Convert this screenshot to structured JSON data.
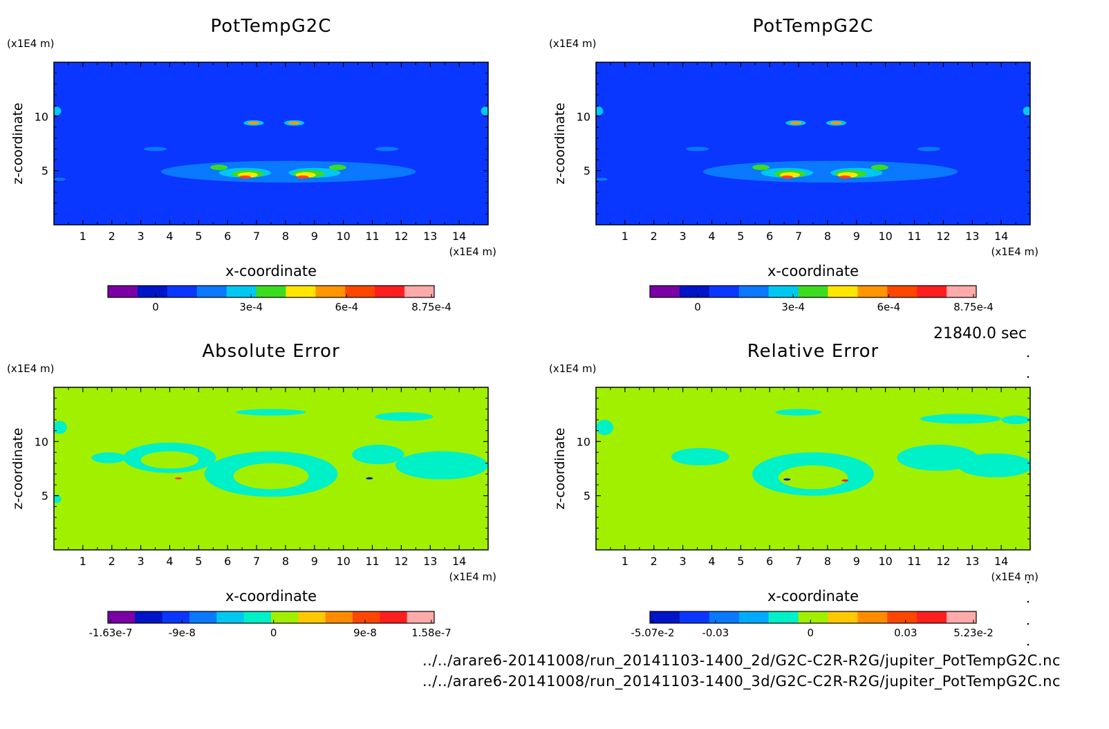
{
  "time_label": "21840.0 sec",
  "footer": {
    "line1": "../../arare6-20141008/run_20141103-1400_2d/G2C-C2R-R2G/jupiter_PotTempG2C.nc",
    "line2": "../../arare6-20141008/run_20141103-1400_3d/G2C-C2R-R2G/jupiter_PotTempG2C.nc"
  },
  "chart_data": [
    {
      "type": "heatmap",
      "title": "PotTempG2C",
      "xlabel": "x-coordinate",
      "ylabel": "z-coordinate",
      "x_unit": "(x1E4 m)",
      "y_unit": "(x1E4 m)",
      "xlim": [
        0,
        15
      ],
      "ylim": [
        0,
        15
      ],
      "x_ticks": [
        1,
        2,
        3,
        4,
        5,
        6,
        7,
        8,
        9,
        10,
        11,
        12,
        13,
        14
      ],
      "y_ticks": [
        5,
        10
      ],
      "background_color": "#0a37ff",
      "colorbar": {
        "colors": [
          "#7b00a5",
          "#0014c8",
          "#0a37ff",
          "#0a78ff",
          "#00c8f0",
          "#3cdc1e",
          "#ffe600",
          "#ff9600",
          "#ff4600",
          "#ff1e1e",
          "#ffaaaa"
        ],
        "ticks": [
          "0",
          "3e-4",
          "6e-4",
          "8.75e-4"
        ],
        "tick_values": [
          0,
          0.0003,
          0.0006,
          0.000875
        ],
        "range": [
          -0.00015,
          0.000875
        ]
      },
      "blobs": [
        {
          "x": 8.1,
          "z": 4.9,
          "rx": 4.4,
          "rz": 1.0,
          "color": "#0a78ff"
        },
        {
          "x": 6.6,
          "z": 4.8,
          "rx": 0.9,
          "rz": 0.45,
          "color": "#00c8f0"
        },
        {
          "x": 9.0,
          "z": 4.8,
          "rx": 0.9,
          "rz": 0.45,
          "color": "#00c8f0"
        },
        {
          "x": 6.7,
          "z": 4.7,
          "rx": 0.55,
          "rz": 0.35,
          "color": "#3cdc1e"
        },
        {
          "x": 8.8,
          "z": 4.7,
          "rx": 0.55,
          "rz": 0.35,
          "color": "#3cdc1e"
        },
        {
          "x": 6.7,
          "z": 4.6,
          "rx": 0.35,
          "rz": 0.25,
          "color": "#ffe600"
        },
        {
          "x": 8.7,
          "z": 4.6,
          "rx": 0.35,
          "rz": 0.25,
          "color": "#ffe600"
        },
        {
          "x": 6.6,
          "z": 4.4,
          "rx": 0.2,
          "rz": 0.15,
          "color": "#ff4600"
        },
        {
          "x": 8.6,
          "z": 4.4,
          "rx": 0.2,
          "rz": 0.15,
          "color": "#ff4600"
        },
        {
          "x": 5.7,
          "z": 5.3,
          "rx": 0.3,
          "rz": 0.25,
          "color": "#3cdc1e"
        },
        {
          "x": 9.8,
          "z": 5.3,
          "rx": 0.3,
          "rz": 0.25,
          "color": "#3cdc1e"
        },
        {
          "x": 6.9,
          "z": 9.4,
          "rx": 0.35,
          "rz": 0.25,
          "color": "#00c8f0"
        },
        {
          "x": 8.3,
          "z": 9.4,
          "rx": 0.35,
          "rz": 0.25,
          "color": "#00c8f0"
        },
        {
          "x": 6.9,
          "z": 9.4,
          "rx": 0.2,
          "rz": 0.14,
          "color": "#ff9600"
        },
        {
          "x": 8.3,
          "z": 9.4,
          "rx": 0.2,
          "rz": 0.14,
          "color": "#ff9600"
        },
        {
          "x": 0.1,
          "z": 10.5,
          "rx": 0.15,
          "rz": 0.4,
          "color": "#00c8f0"
        },
        {
          "x": 14.9,
          "z": 10.5,
          "rx": 0.15,
          "rz": 0.4,
          "color": "#00c8f0"
        },
        {
          "x": 3.5,
          "z": 7.0,
          "rx": 0.4,
          "rz": 0.2,
          "color": "#0a78ff"
        },
        {
          "x": 11.5,
          "z": 7.0,
          "rx": 0.4,
          "rz": 0.2,
          "color": "#0a78ff"
        },
        {
          "x": 0.2,
          "z": 4.2,
          "rx": 0.2,
          "rz": 0.15,
          "color": "#0a78ff"
        }
      ]
    },
    {
      "type": "heatmap",
      "title": "PotTempG2C",
      "xlabel": "x-coordinate",
      "ylabel": "z-coordinate",
      "x_unit": "(x1E4 m)",
      "y_unit": "(x1E4 m)",
      "xlim": [
        0,
        15
      ],
      "ylim": [
        0,
        15
      ],
      "x_ticks": [
        1,
        2,
        3,
        4,
        5,
        6,
        7,
        8,
        9,
        10,
        11,
        12,
        13,
        14
      ],
      "y_ticks": [
        5,
        10
      ],
      "background_color": "#0a37ff",
      "colorbar": {
        "colors": [
          "#7b00a5",
          "#0014c8",
          "#0a37ff",
          "#0a78ff",
          "#00c8f0",
          "#3cdc1e",
          "#ffe600",
          "#ff9600",
          "#ff4600",
          "#ff1e1e",
          "#ffaaaa"
        ],
        "ticks": [
          "0",
          "3e-4",
          "6e-4",
          "8.75e-4"
        ],
        "tick_values": [
          0,
          0.0003,
          0.0006,
          0.000875
        ],
        "range": [
          -0.00015,
          0.000875
        ]
      },
      "blobs": [
        {
          "x": 8.1,
          "z": 4.9,
          "rx": 4.4,
          "rz": 1.0,
          "color": "#0a78ff"
        },
        {
          "x": 6.6,
          "z": 4.8,
          "rx": 0.9,
          "rz": 0.45,
          "color": "#00c8f0"
        },
        {
          "x": 9.0,
          "z": 4.8,
          "rx": 0.9,
          "rz": 0.45,
          "color": "#00c8f0"
        },
        {
          "x": 6.7,
          "z": 4.7,
          "rx": 0.55,
          "rz": 0.35,
          "color": "#3cdc1e"
        },
        {
          "x": 8.8,
          "z": 4.7,
          "rx": 0.55,
          "rz": 0.35,
          "color": "#3cdc1e"
        },
        {
          "x": 6.7,
          "z": 4.6,
          "rx": 0.35,
          "rz": 0.25,
          "color": "#ffe600"
        },
        {
          "x": 8.7,
          "z": 4.6,
          "rx": 0.35,
          "rz": 0.25,
          "color": "#ffe600"
        },
        {
          "x": 6.6,
          "z": 4.4,
          "rx": 0.2,
          "rz": 0.15,
          "color": "#ff4600"
        },
        {
          "x": 8.6,
          "z": 4.4,
          "rx": 0.2,
          "rz": 0.15,
          "color": "#ff4600"
        },
        {
          "x": 5.7,
          "z": 5.3,
          "rx": 0.3,
          "rz": 0.25,
          "color": "#3cdc1e"
        },
        {
          "x": 9.8,
          "z": 5.3,
          "rx": 0.3,
          "rz": 0.25,
          "color": "#3cdc1e"
        },
        {
          "x": 6.9,
          "z": 9.4,
          "rx": 0.35,
          "rz": 0.25,
          "color": "#00c8f0"
        },
        {
          "x": 8.3,
          "z": 9.4,
          "rx": 0.35,
          "rz": 0.25,
          "color": "#00c8f0"
        },
        {
          "x": 6.9,
          "z": 9.4,
          "rx": 0.2,
          "rz": 0.14,
          "color": "#ff9600"
        },
        {
          "x": 8.3,
          "z": 9.4,
          "rx": 0.2,
          "rz": 0.14,
          "color": "#ff9600"
        },
        {
          "x": 0.1,
          "z": 10.5,
          "rx": 0.15,
          "rz": 0.4,
          "color": "#00c8f0"
        },
        {
          "x": 14.9,
          "z": 10.5,
          "rx": 0.15,
          "rz": 0.4,
          "color": "#00c8f0"
        },
        {
          "x": 3.5,
          "z": 7.0,
          "rx": 0.4,
          "rz": 0.2,
          "color": "#0a78ff"
        },
        {
          "x": 11.5,
          "z": 7.0,
          "rx": 0.4,
          "rz": 0.2,
          "color": "#0a78ff"
        },
        {
          "x": 0.2,
          "z": 4.2,
          "rx": 0.2,
          "rz": 0.15,
          "color": "#0a78ff"
        }
      ]
    },
    {
      "type": "heatmap",
      "title": "Absolute Error",
      "xlabel": "x-coordinate",
      "ylabel": "z-coordinate",
      "x_unit": "(x1E4 m)",
      "y_unit": "(x1E4 m)",
      "xlim": [
        0,
        15
      ],
      "ylim": [
        0,
        15
      ],
      "x_ticks": [
        1,
        2,
        3,
        4,
        5,
        6,
        7,
        8,
        9,
        10,
        11,
        12,
        13,
        14
      ],
      "y_ticks": [
        5,
        10
      ],
      "background_color": "#a0f000",
      "colorbar": {
        "colors": [
          "#7b00a5",
          "#0014c8",
          "#0a37ff",
          "#0a78ff",
          "#00c8f0",
          "#00f0c8",
          "#a0f000",
          "#ffc800",
          "#ff8c00",
          "#ff4600",
          "#ff1e1e",
          "#ffaaaa"
        ],
        "ticks": [
          "-1.63e-7",
          "-9e-8",
          "0",
          "9e-8",
          "1.58e-7"
        ],
        "tick_values": [
          -1.63e-07,
          -9e-08,
          0,
          9e-08,
          1.58e-07
        ],
        "range": [
          -1.63e-07,
          1.58e-07
        ]
      },
      "blobs": [
        {
          "x": 7.5,
          "z": 7.0,
          "rx": 2.3,
          "rz": 2.1,
          "color": "#00f0c8"
        },
        {
          "x": 7.5,
          "z": 6.8,
          "rx": 1.3,
          "rz": 1.2,
          "color": "#a0f000"
        },
        {
          "x": 4.0,
          "z": 8.5,
          "rx": 1.6,
          "rz": 1.4,
          "color": "#00f0c8"
        },
        {
          "x": 4.0,
          "z": 8.3,
          "rx": 1.0,
          "rz": 0.8,
          "color": "#a0f000"
        },
        {
          "x": 11.2,
          "z": 8.8,
          "rx": 0.9,
          "rz": 0.9,
          "color": "#00f0c8"
        },
        {
          "x": 13.4,
          "z": 7.8,
          "rx": 1.6,
          "rz": 1.3,
          "color": "#00f0c8"
        },
        {
          "x": 12.1,
          "z": 12.3,
          "rx": 1.0,
          "rz": 0.4,
          "color": "#00f0c8"
        },
        {
          "x": 7.5,
          "z": 12.7,
          "rx": 1.2,
          "rz": 0.3,
          "color": "#00f0c8"
        },
        {
          "x": 0.2,
          "z": 11.3,
          "rx": 0.25,
          "rz": 0.6,
          "color": "#00f0c8"
        },
        {
          "x": 1.9,
          "z": 8.5,
          "rx": 0.6,
          "rz": 0.5,
          "color": "#00f0c8"
        },
        {
          "x": 0.1,
          "z": 4.7,
          "rx": 0.15,
          "rz": 0.4,
          "color": "#00f0c8"
        },
        {
          "x": 4.3,
          "z": 6.6,
          "rx": 0.12,
          "rz": 0.1,
          "color": "#ff4600"
        },
        {
          "x": 10.9,
          "z": 6.6,
          "rx": 0.12,
          "rz": 0.1,
          "color": "#0014c8"
        }
      ]
    },
    {
      "type": "heatmap",
      "title": "Relative Error",
      "xlabel": "x-coordinate",
      "ylabel": "z-coordinate",
      "x_unit": "(x1E4 m)",
      "y_unit": "(x1E4 m)",
      "xlim": [
        0,
        15
      ],
      "ylim": [
        0,
        15
      ],
      "x_ticks": [
        1,
        2,
        3,
        4,
        5,
        6,
        7,
        8,
        9,
        10,
        11,
        12,
        13,
        14
      ],
      "y_ticks": [
        5,
        10
      ],
      "background_color": "#a0f000",
      "colorbar": {
        "colors": [
          "#0014c8",
          "#0a37ff",
          "#0a78ff",
          "#00aaff",
          "#00f0c8",
          "#a0f000",
          "#ffc800",
          "#ff8c00",
          "#ff4600",
          "#ff1e1e",
          "#ffaaaa"
        ],
        "ticks": [
          "-5.07e-2",
          "-0.03",
          "0",
          "0.03",
          "5.23e-2"
        ],
        "tick_values": [
          -0.0507,
          -0.03,
          0,
          0.03,
          0.0523
        ],
        "range": [
          -0.0507,
          0.0523
        ]
      },
      "blobs": [
        {
          "x": 7.5,
          "z": 7.0,
          "rx": 2.1,
          "rz": 2.0,
          "color": "#00f0c8"
        },
        {
          "x": 7.5,
          "z": 6.7,
          "rx": 1.2,
          "rz": 1.1,
          "color": "#a0f000"
        },
        {
          "x": 3.6,
          "z": 8.6,
          "rx": 1.0,
          "rz": 0.8,
          "color": "#00f0c8"
        },
        {
          "x": 11.8,
          "z": 8.5,
          "rx": 1.4,
          "rz": 1.2,
          "color": "#00f0c8"
        },
        {
          "x": 13.8,
          "z": 7.8,
          "rx": 1.3,
          "rz": 1.1,
          "color": "#00f0c8"
        },
        {
          "x": 12.6,
          "z": 12.1,
          "rx": 1.4,
          "rz": 0.45,
          "color": "#00f0c8"
        },
        {
          "x": 14.5,
          "z": 12.0,
          "rx": 0.5,
          "rz": 0.4,
          "color": "#00f0c8"
        },
        {
          "x": 0.3,
          "z": 11.3,
          "rx": 0.3,
          "rz": 0.7,
          "color": "#00f0c8"
        },
        {
          "x": 7.0,
          "z": 12.7,
          "rx": 0.8,
          "rz": 0.3,
          "color": "#00f0c8"
        },
        {
          "x": 6.6,
          "z": 6.5,
          "rx": 0.12,
          "rz": 0.1,
          "color": "#0014c8"
        },
        {
          "x": 8.6,
          "z": 6.4,
          "rx": 0.12,
          "rz": 0.1,
          "color": "#ff1e1e"
        }
      ]
    }
  ]
}
